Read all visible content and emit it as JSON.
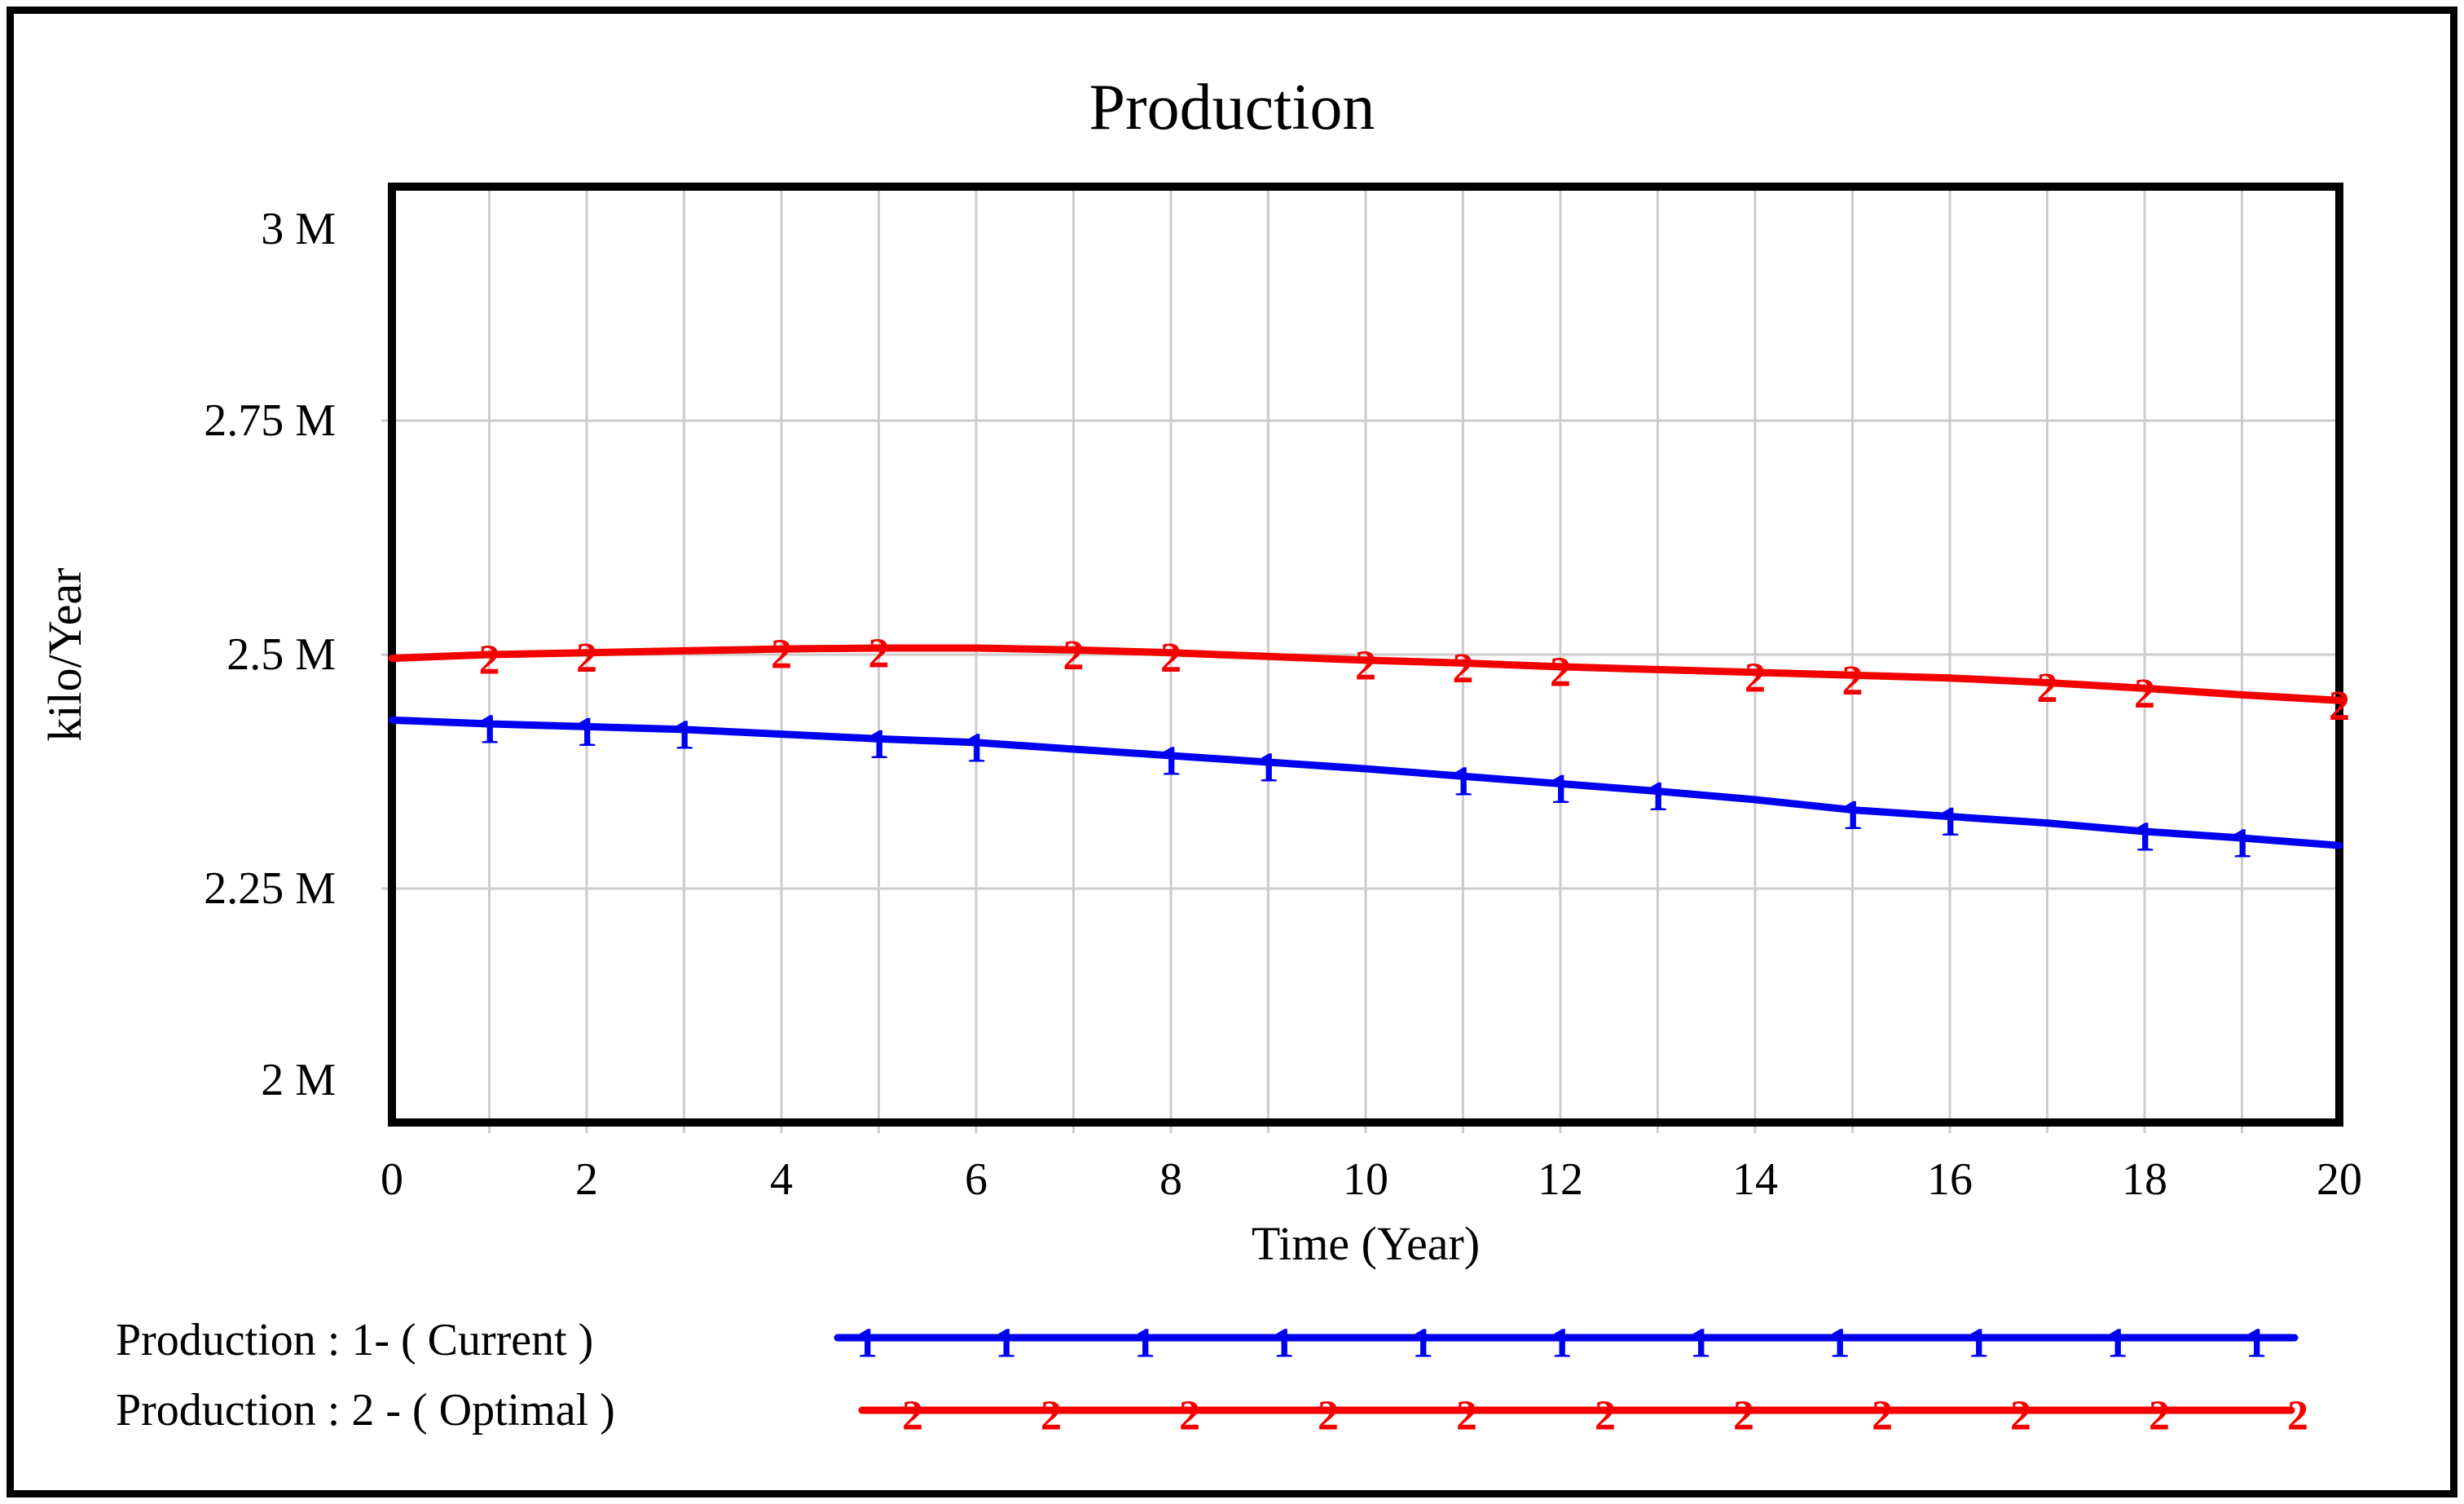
{
  "window": {
    "background": "#ffffff",
    "border_color": "#000000"
  },
  "chart_data": {
    "type": "line",
    "title": "Production",
    "xlabel": "Time (Year)",
    "ylabel": "kilo/Year",
    "xlim": [
      0,
      20
    ],
    "ylim": [
      2,
      3
    ],
    "y_unit": "M kilo/Year",
    "grid": {
      "shown": true,
      "x_interval": 1,
      "y_interval": 0.25,
      "color": "#cccccc"
    },
    "x_ticks": [
      0,
      2,
      4,
      6,
      8,
      10,
      12,
      14,
      16,
      18,
      20
    ],
    "y_ticks": [
      {
        "value": 2,
        "label": "2 M"
      },
      {
        "value": 2.25,
        "label": "2.25 M"
      },
      {
        "value": 2.5,
        "label": "2.5 M"
      },
      {
        "value": 2.75,
        "label": "2.75 M"
      },
      {
        "value": 3,
        "label": "3 M"
      }
    ],
    "x": [
      0,
      1,
      2,
      3,
      4,
      5,
      6,
      7,
      8,
      9,
      10,
      11,
      12,
      13,
      14,
      15,
      16,
      17,
      18,
      19,
      20
    ],
    "series": [
      {
        "name": "Production : 1- ( Current )",
        "marker_glyph": "1",
        "color": "#0000f0",
        "values": [
          2.43,
          2.426,
          2.423,
          2.42,
          2.415,
          2.41,
          2.406,
          2.399,
          2.392,
          2.385,
          2.378,
          2.37,
          2.362,
          2.354,
          2.345,
          2.334,
          2.327,
          2.32,
          2.311,
          2.304,
          2.296
        ],
        "marker_times": [
          1,
          2,
          3,
          5,
          6,
          8,
          9,
          11,
          12,
          13,
          15,
          16,
          18,
          19
        ]
      },
      {
        "name": "Production : 2 - ( Optimal )",
        "marker_glyph": "2",
        "color": "#f40000",
        "values": [
          2.496,
          2.5,
          2.502,
          2.504,
          2.506,
          2.507,
          2.507,
          2.505,
          2.502,
          2.498,
          2.494,
          2.491,
          2.487,
          2.484,
          2.481,
          2.478,
          2.475,
          2.47,
          2.464,
          2.457,
          2.451
        ],
        "marker_times": [
          1,
          2,
          4,
          5,
          7,
          8,
          10,
          11,
          12,
          14,
          15,
          17,
          18,
          20
        ]
      }
    ],
    "legend_position": "bottom-left"
  }
}
